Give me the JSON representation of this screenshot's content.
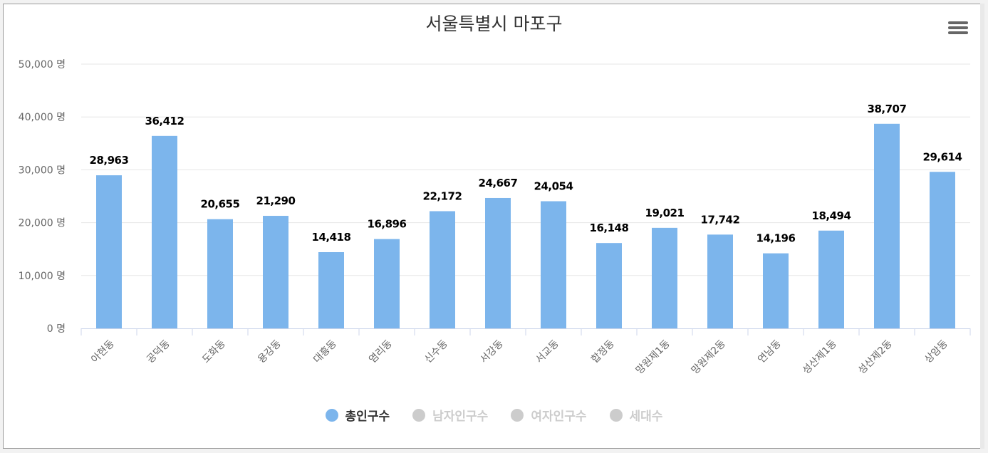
{
  "chart_data": {
    "type": "bar",
    "title": "서울특별시 마포구",
    "categories": [
      "아현동",
      "공덕동",
      "도화동",
      "용강동",
      "대흥동",
      "염리동",
      "신수동",
      "서강동",
      "서교동",
      "합정동",
      "망원제1동",
      "망원제2동",
      "연남동",
      "성산제1동",
      "성산제2동",
      "상암동"
    ],
    "series": [
      {
        "name": "총인구수",
        "values": [
          28963,
          36412,
          20655,
          21290,
          14418,
          16896,
          22172,
          24667,
          24054,
          16148,
          19021,
          17742,
          14196,
          18494,
          38707,
          29614
        ],
        "visible": true
      }
    ],
    "data_labels": [
      "28,963",
      "36,412",
      "20,655",
      "21,290",
      "14,418",
      "16,896",
      "22,172",
      "24,667",
      "24,054",
      "16,148",
      "19,021",
      "17,742",
      "14,196",
      "18,494",
      "38,707",
      "29,614"
    ],
    "y_ticks": [
      "0 명",
      "10,000 명",
      "20,000 명",
      "30,000 명",
      "40,000 명",
      "50,000 명"
    ],
    "ylim": [
      0,
      50000
    ],
    "grid": true,
    "legend_position": "bottom",
    "bar_color": "#7cb5ec"
  },
  "legend": [
    {
      "label": "총인구수",
      "color": "#7cb5ec",
      "text_color": "#333333",
      "active": true
    },
    {
      "label": "남자인구수",
      "color": "#cccccc",
      "text_color": "#cccccc",
      "active": false
    },
    {
      "label": "여자인구수",
      "color": "#cccccc",
      "text_color": "#cccccc",
      "active": false
    },
    {
      "label": "세대수",
      "color": "#cccccc",
      "text_color": "#cccccc",
      "active": false
    }
  ],
  "menu_icon": "hamburger-menu-icon"
}
